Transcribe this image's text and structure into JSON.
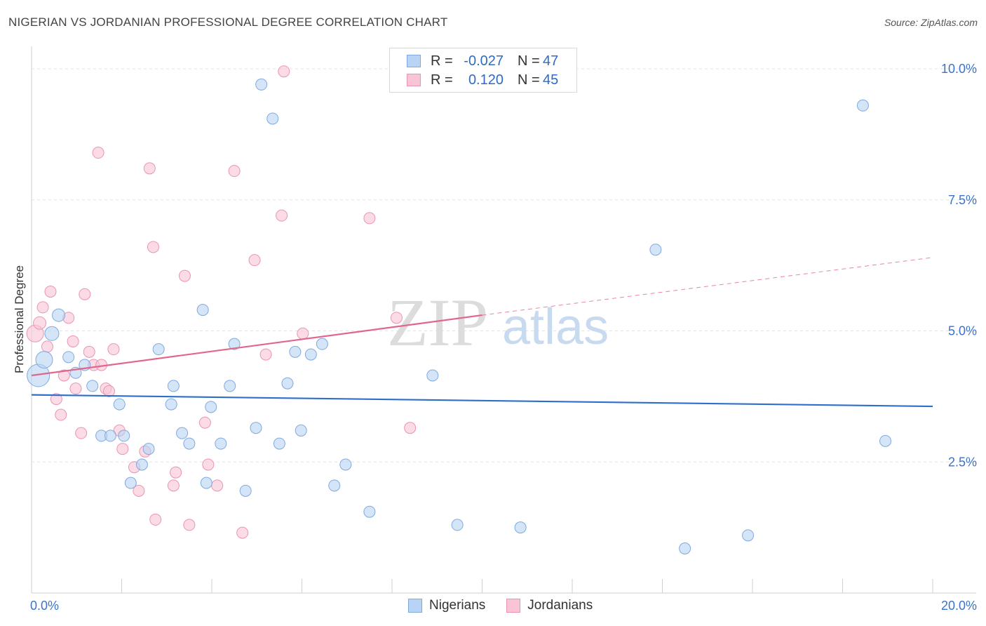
{
  "title": "NIGERIAN VS JORDANIAN PROFESSIONAL DEGREE CORRELATION CHART",
  "source": "Source: ZipAtlas.com",
  "watermark": {
    "zip": "ZIP",
    "atlas": "atlas"
  },
  "legend": {
    "rows": [
      {
        "r_label": "R =",
        "r_value": "-0.027",
        "n_label": "N =",
        "n_value": "47"
      },
      {
        "r_label": "R =",
        "r_value": "0.120",
        "n_label": "N =",
        "n_value": "45"
      }
    ]
  },
  "bottom_legend": {
    "series1": "Nigerians",
    "series2": "Jordanians"
  },
  "colors": {
    "blue_fill": "#b8d3f3",
    "blue_stroke": "#7fa9e0",
    "blue_line": "#2e6fcc",
    "pink_fill": "#f9c4d5",
    "pink_stroke": "#ec93b1",
    "pink_line": "#e0668e",
    "tick_label": "#3b73c9"
  },
  "chart_data": {
    "type": "scatter",
    "title": "NIGERIAN VS JORDANIAN PROFESSIONAL DEGREE CORRELATION CHART",
    "xlabel": "",
    "ylabel": "Professional Degree",
    "xlim": [
      0,
      20
    ],
    "ylim": [
      0,
      10.5
    ],
    "x_tick_labels": [
      "0.0%",
      "20.0%"
    ],
    "y_ticks": [
      2.5,
      5.0,
      7.5,
      10.0
    ],
    "y_tick_labels": [
      "2.5%",
      "5.0%",
      "7.5%",
      "10.0%"
    ],
    "grid": true,
    "series": [
      {
        "name": "Nigerians",
        "color": "#b8d3f3",
        "r": -0.027,
        "n": 47,
        "trend": {
          "x": [
            0,
            20
          ],
          "y": [
            3.78,
            3.56
          ]
        },
        "points": [
          {
            "x": 0.15,
            "y": 4.15,
            "s": 16
          },
          {
            "x": 0.28,
            "y": 4.45,
            "s": 12
          },
          {
            "x": 0.45,
            "y": 4.95,
            "s": 10
          },
          {
            "x": 0.6,
            "y": 5.3,
            "s": 9
          },
          {
            "x": 0.82,
            "y": 4.5,
            "s": 8
          },
          {
            "x": 0.98,
            "y": 4.2,
            "s": 8
          },
          {
            "x": 1.18,
            "y": 4.35,
            "s": 8
          },
          {
            "x": 1.35,
            "y": 3.95,
            "s": 8
          },
          {
            "x": 1.55,
            "y": 3.0,
            "s": 8
          },
          {
            "x": 1.75,
            "y": 3.0,
            "s": 8
          },
          {
            "x": 1.95,
            "y": 3.6,
            "s": 8
          },
          {
            "x": 2.05,
            "y": 3.0,
            "s": 8
          },
          {
            "x": 2.2,
            "y": 2.1,
            "s": 8
          },
          {
            "x": 2.45,
            "y": 2.45,
            "s": 8
          },
          {
            "x": 2.6,
            "y": 2.75,
            "s": 8
          },
          {
            "x": 2.82,
            "y": 4.65,
            "s": 8
          },
          {
            "x": 3.1,
            "y": 3.6,
            "s": 8
          },
          {
            "x": 3.15,
            "y": 3.95,
            "s": 8
          },
          {
            "x": 3.34,
            "y": 3.05,
            "s": 8
          },
          {
            "x": 3.5,
            "y": 2.85,
            "s": 8
          },
          {
            "x": 3.8,
            "y": 5.4,
            "s": 8
          },
          {
            "x": 3.88,
            "y": 2.1,
            "s": 8
          },
          {
            "x": 3.98,
            "y": 3.55,
            "s": 8
          },
          {
            "x": 4.2,
            "y": 2.85,
            "s": 8
          },
          {
            "x": 4.4,
            "y": 3.95,
            "s": 8
          },
          {
            "x": 4.5,
            "y": 4.75,
            "s": 8
          },
          {
            "x": 4.75,
            "y": 1.95,
            "s": 8
          },
          {
            "x": 4.98,
            "y": 3.15,
            "s": 8
          },
          {
            "x": 5.1,
            "y": 9.7,
            "s": 8
          },
          {
            "x": 5.35,
            "y": 9.05,
            "s": 8
          },
          {
            "x": 5.5,
            "y": 2.85,
            "s": 8
          },
          {
            "x": 5.68,
            "y": 4.0,
            "s": 8
          },
          {
            "x": 5.85,
            "y": 4.6,
            "s": 8
          },
          {
            "x": 5.98,
            "y": 3.1,
            "s": 8
          },
          {
            "x": 6.2,
            "y": 4.55,
            "s": 8
          },
          {
            "x": 6.45,
            "y": 4.75,
            "s": 8
          },
          {
            "x": 6.72,
            "y": 2.05,
            "s": 8
          },
          {
            "x": 6.97,
            "y": 2.45,
            "s": 8
          },
          {
            "x": 7.5,
            "y": 1.55,
            "s": 8
          },
          {
            "x": 8.9,
            "y": 4.15,
            "s": 8
          },
          {
            "x": 9.45,
            "y": 1.3,
            "s": 8
          },
          {
            "x": 10.85,
            "y": 1.25,
            "s": 8
          },
          {
            "x": 13.85,
            "y": 6.55,
            "s": 8
          },
          {
            "x": 14.5,
            "y": 0.85,
            "s": 8
          },
          {
            "x": 15.9,
            "y": 1.1,
            "s": 8
          },
          {
            "x": 18.45,
            "y": 9.3,
            "s": 8
          },
          {
            "x": 18.95,
            "y": 2.9,
            "s": 8
          }
        ]
      },
      {
        "name": "Jordanians",
        "color": "#f9c4d5",
        "r": 0.12,
        "n": 45,
        "trend": {
          "x": [
            0,
            10
          ],
          "y": [
            4.15,
            5.3
          ],
          "dashed_to": {
            "x": 20,
            "y": 6.4
          }
        },
        "points": [
          {
            "x": 0.08,
            "y": 4.95,
            "s": 12
          },
          {
            "x": 0.18,
            "y": 5.15,
            "s": 9
          },
          {
            "x": 0.25,
            "y": 5.45,
            "s": 8
          },
          {
            "x": 0.35,
            "y": 4.7,
            "s": 8
          },
          {
            "x": 0.42,
            "y": 5.75,
            "s": 8
          },
          {
            "x": 0.55,
            "y": 3.7,
            "s": 8
          },
          {
            "x": 0.65,
            "y": 3.4,
            "s": 8
          },
          {
            "x": 0.72,
            "y": 4.15,
            "s": 8
          },
          {
            "x": 0.82,
            "y": 5.25,
            "s": 8
          },
          {
            "x": 0.92,
            "y": 4.8,
            "s": 8
          },
          {
            "x": 0.98,
            "y": 3.9,
            "s": 8
          },
          {
            "x": 1.1,
            "y": 3.05,
            "s": 8
          },
          {
            "x": 1.18,
            "y": 5.7,
            "s": 8
          },
          {
            "x": 1.28,
            "y": 4.6,
            "s": 8
          },
          {
            "x": 1.38,
            "y": 4.35,
            "s": 8
          },
          {
            "x": 1.48,
            "y": 8.4,
            "s": 8
          },
          {
            "x": 1.55,
            "y": 4.35,
            "s": 8
          },
          {
            "x": 1.65,
            "y": 3.9,
            "s": 8
          },
          {
            "x": 1.72,
            "y": 3.85,
            "s": 8
          },
          {
            "x": 1.82,
            "y": 4.65,
            "s": 8
          },
          {
            "x": 1.95,
            "y": 3.1,
            "s": 8
          },
          {
            "x": 2.02,
            "y": 2.75,
            "s": 8
          },
          {
            "x": 2.28,
            "y": 2.4,
            "s": 8
          },
          {
            "x": 2.38,
            "y": 1.95,
            "s": 8
          },
          {
            "x": 2.52,
            "y": 2.7,
            "s": 8
          },
          {
            "x": 2.62,
            "y": 8.1,
            "s": 8
          },
          {
            "x": 2.7,
            "y": 6.6,
            "s": 8
          },
          {
            "x": 2.75,
            "y": 1.4,
            "s": 8
          },
          {
            "x": 3.15,
            "y": 2.05,
            "s": 8
          },
          {
            "x": 3.2,
            "y": 2.3,
            "s": 8
          },
          {
            "x": 3.4,
            "y": 6.05,
            "s": 8
          },
          {
            "x": 3.5,
            "y": 1.3,
            "s": 8
          },
          {
            "x": 3.85,
            "y": 3.25,
            "s": 8
          },
          {
            "x": 3.92,
            "y": 2.45,
            "s": 8
          },
          {
            "x": 4.12,
            "y": 2.05,
            "s": 8
          },
          {
            "x": 4.5,
            "y": 8.05,
            "s": 8
          },
          {
            "x": 4.68,
            "y": 1.15,
            "s": 8
          },
          {
            "x": 4.95,
            "y": 6.35,
            "s": 8
          },
          {
            "x": 5.2,
            "y": 4.55,
            "s": 8
          },
          {
            "x": 5.55,
            "y": 7.2,
            "s": 8
          },
          {
            "x": 5.6,
            "y": 9.95,
            "s": 8
          },
          {
            "x": 6.02,
            "y": 4.95,
            "s": 8
          },
          {
            "x": 7.5,
            "y": 7.15,
            "s": 8
          },
          {
            "x": 8.1,
            "y": 5.25,
            "s": 8
          },
          {
            "x": 8.4,
            "y": 3.15,
            "s": 8
          }
        ]
      }
    ]
  }
}
